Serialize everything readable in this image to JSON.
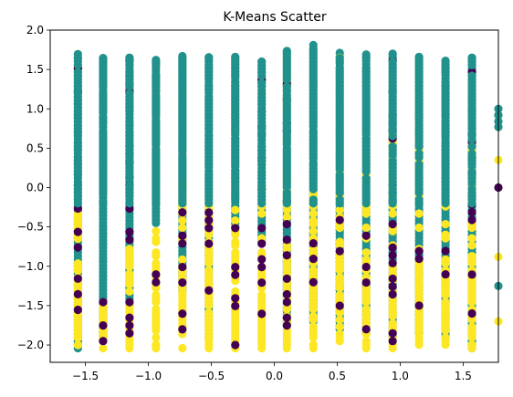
{
  "chart_data": {
    "type": "scatter",
    "title": "K-Means Scatter",
    "xlabel": "",
    "ylabel": "",
    "xlim": [
      -1.78,
      1.78
    ],
    "ylim": [
      -2.22,
      2.0
    ],
    "xticks": [
      -1.5,
      -1.0,
      -0.5,
      0.0,
      0.5,
      1.0,
      1.5
    ],
    "xtick_labels": [
      "−1.5",
      "−1.0",
      "−0.5",
      "0.0",
      "0.5",
      "1.0",
      "1.5"
    ],
    "yticks": [
      -2.0,
      -1.5,
      -1.0,
      -0.5,
      0.0,
      0.5,
      1.0,
      1.5,
      2.0
    ],
    "ytick_labels": [
      "−2.0",
      "−1.5",
      "−1.0",
      "−0.5",
      "0.0",
      "0.5",
      "1.0",
      "1.5",
      "2.0"
    ],
    "grid": false,
    "legend": "none",
    "colors": {
      "cluster_0": "#440154",
      "cluster_1": "#21918c",
      "cluster_2": "#fde725"
    },
    "columns": [
      {
        "x": -1.56,
        "teal": [
          -2.04,
          1.72
        ],
        "yellow": [
          -2.0,
          -0.05
        ],
        "purple": [
          -1.85,
          1.75
        ]
      },
      {
        "x": -1.36,
        "teal": [
          -1.93,
          1.66
        ],
        "yellow": [
          -2.04,
          -1.45
        ],
        "purple": [
          -1.95,
          -1.28
        ]
      },
      {
        "x": -1.15,
        "teal": [
          -1.5,
          1.68
        ],
        "yellow": [
          -2.04,
          -0.7
        ],
        "purple": [
          -1.95,
          1.62
        ]
      },
      {
        "x": -0.94,
        "teal": [
          -0.45,
          1.63
        ],
        "yellow": [
          -2.04,
          -0.55
        ],
        "purple": [
          -1.5,
          -0.8
        ]
      },
      {
        "x": -0.73,
        "teal": [
          -1.3,
          1.68
        ],
        "yellow": [
          -2.04,
          0.15
        ],
        "purple": [
          -1.9,
          -0.3
        ]
      },
      {
        "x": -0.52,
        "teal": [
          -1.9,
          1.68
        ],
        "yellow": [
          -2.04,
          -0.05
        ],
        "purple": [
          -2.0,
          -0.15
        ]
      },
      {
        "x": -0.31,
        "teal": [
          -0.5,
          1.68
        ],
        "yellow": [
          -2.04,
          0.12
        ],
        "purple": [
          -2.0,
          -0.4
        ]
      },
      {
        "x": -0.1,
        "teal": [
          -0.7,
          1.63
        ],
        "yellow": [
          -2.04,
          0.42
        ],
        "purple": [
          -2.0,
          1.6
        ]
      },
      {
        "x": 0.1,
        "teal": [
          -1.75,
          1.75
        ],
        "yellow": [
          -2.04,
          1.72
        ],
        "purple": [
          -1.95,
          1.74
        ]
      },
      {
        "x": 0.31,
        "teal": [
          -1.7,
          1.82
        ],
        "yellow": [
          -2.04,
          0.0
        ],
        "purple": [
          -1.5,
          -0.4
        ]
      },
      {
        "x": 0.52,
        "teal": [
          -1.8,
          1.72
        ],
        "yellow": [
          -2.04,
          1.68
        ],
        "purple": [
          -1.6,
          -0.4
        ]
      },
      {
        "x": 0.73,
        "teal": [
          -1.85,
          1.7
        ],
        "yellow": [
          -2.04,
          0.55
        ],
        "purple": [
          -1.8,
          -0.3
        ]
      },
      {
        "x": 0.94,
        "teal": [
          -1.9,
          1.72
        ],
        "yellow": [
          -2.04,
          0.7
        ],
        "purple": [
          -1.95,
          1.68
        ]
      },
      {
        "x": 1.15,
        "teal": [
          -1.85,
          1.68
        ],
        "yellow": [
          -2.04,
          1.22
        ],
        "purple": [
          -1.5,
          -0.2
        ]
      },
      {
        "x": 1.36,
        "teal": [
          -1.9,
          1.62
        ],
        "yellow": [
          -2.04,
          0.3
        ],
        "purple": [
          -1.3,
          -0.8
        ]
      },
      {
        "x": 1.57,
        "teal": [
          -2.04,
          1.66
        ],
        "yellow": [
          -2.04,
          0.95
        ],
        "purple": [
          -1.6,
          1.65
        ]
      }
    ],
    "outliers": [
      {
        "x": 1.78,
        "y": 1.0,
        "cluster": 1
      },
      {
        "x": 1.78,
        "y": 0.92,
        "cluster": 1
      },
      {
        "x": 1.78,
        "y": 0.84,
        "cluster": 1
      },
      {
        "x": 1.78,
        "y": 0.77,
        "cluster": 1
      },
      {
        "x": 1.78,
        "y": 0.35,
        "cluster": 2
      },
      {
        "x": 1.78,
        "y": 0.0,
        "cluster": 0
      },
      {
        "x": 1.78,
        "y": -0.88,
        "cluster": 2
      },
      {
        "x": 1.78,
        "y": -1.25,
        "cluster": 1
      },
      {
        "x": 1.78,
        "y": -1.7,
        "cluster": 2
      }
    ]
  }
}
